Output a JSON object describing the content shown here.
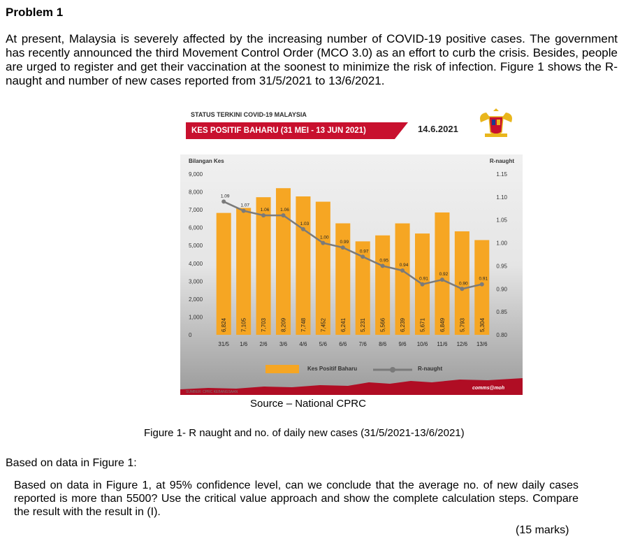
{
  "doc": {
    "title": "Problem 1",
    "intro": "At present, Malaysia is severely affected by the increasing number of COVID-19 positive cases. The government has recently announced the third Movement Control Order (MCO 3.0) as an effort to curb the crisis. Besides, people are urged to register and get their vaccination at the soonest to minimize the risk of infection. Figure 1 shows the R-naught and number of new cases reported from 31/5/2021 to 13/6/2021.",
    "source": "Source – National CPRC",
    "caption": "Figure 1- R naught and no. of daily new cases (31/5/2021-13/6/2021)",
    "based_on": "Based on data in Figure 1:",
    "question": "Based on data in Figure 1, at 95% confidence level, can we conclude that the average no. of new daily cases reported is more than 5500? Use the critical value approach and show the complete calculation steps. Compare the result with the result in (I).",
    "marks": "(15 marks)"
  },
  "figure": {
    "status_title": "STATUS TERKINI COVID-19 MALAYSIA",
    "banner": "KES POSITIF BAHARU (31 MEI - 13 JUN 2021)",
    "date": "14.6.2021",
    "sumber": "SUMBER: CPRC KEBANGSAAN",
    "comms": "comms@moh",
    "colors": {
      "bar": "#f6a623",
      "line": "#7a7a7a",
      "banner": "#c8102e"
    }
  },
  "chart_data": {
    "type": "bar",
    "categories": [
      "31/5",
      "1/6",
      "2/6",
      "3/6",
      "4/6",
      "5/6",
      "6/6",
      "7/6",
      "8/6",
      "9/6",
      "10/6",
      "11/6",
      "12/6",
      "13/6"
    ],
    "series": [
      {
        "name": "Kes Positif Baharu",
        "type": "bar",
        "axis": "left",
        "values": [
          6824,
          7105,
          7703,
          8209,
          7748,
          7452,
          6241,
          5231,
          5566,
          6239,
          5671,
          6849,
          5793,
          5304
        ],
        "labels": [
          "6,824",
          "7,105",
          "7,703",
          "8,209",
          "7,748",
          "7,452",
          "6,241",
          "5,231",
          "5,566",
          "6,239",
          "5,671",
          "6,849",
          "5,793",
          "5,304"
        ]
      },
      {
        "name": "R-naught",
        "type": "line",
        "axis": "right",
        "values": [
          1.09,
          1.07,
          1.06,
          1.06,
          1.03,
          1.0,
          0.99,
          0.97,
          0.95,
          0.94,
          0.91,
          0.92,
          0.9,
          0.91
        ],
        "labels": [
          "1.09",
          "1.07",
          "1.06",
          "1.06",
          "1.03",
          "1.00",
          "0.99",
          "0.97",
          "0.95",
          "0.94",
          "0.91",
          "0.92",
          "0.90",
          "0.91"
        ]
      }
    ],
    "ylabel": "Bilangan Kes",
    "y2label": "R-naught",
    "ylim": [
      0,
      9000
    ],
    "y2lim": [
      0.8,
      1.15
    ],
    "yticks": [
      "0",
      "1,000",
      "2,000",
      "3,000",
      "4,000",
      "5,000",
      "6,000",
      "7,000",
      "8,000",
      "9,000"
    ],
    "y2ticks": [
      "0.80",
      "0.85",
      "0.90",
      "0.95",
      "1.00",
      "1.05",
      "1.10",
      "1.15"
    ],
    "legend": [
      "Kes Positif Baharu",
      "R-naught"
    ],
    "legend_position": "bottom"
  }
}
